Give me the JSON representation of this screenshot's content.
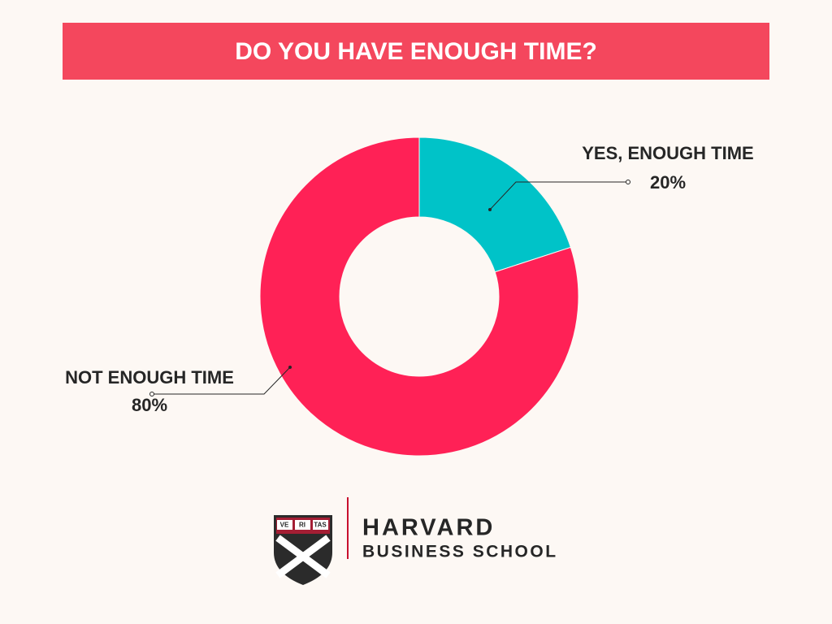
{
  "chart_data": {
    "type": "donut",
    "title": "DO YOU HAVE ENOUGH TIME?",
    "categories": [
      "YES, ENOUGH TIME",
      "NOT ENOUGH TIME"
    ],
    "values": [
      20,
      80
    ],
    "value_labels": [
      "20%",
      "80%"
    ],
    "colors": [
      "#00c3c8",
      "#ff2156"
    ]
  },
  "footer": {
    "logo_title": "HARVARD",
    "logo_subtitle": "BUSINESS SCHOOL",
    "motto": [
      "VE",
      "RI",
      "TAS"
    ]
  }
}
